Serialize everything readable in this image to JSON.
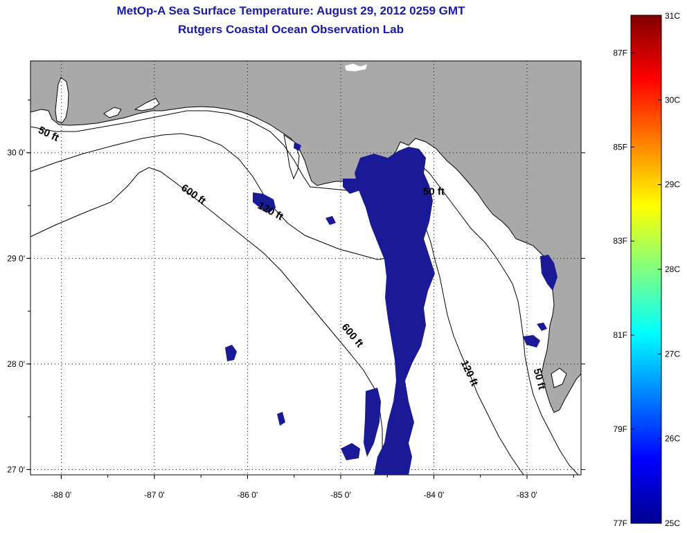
{
  "title": "MetOp-A Sea Surface Temperature:  August 29, 2012 0259 GMT",
  "subtitle": "Rutgers Coastal Ocean Observation Lab",
  "lon_ticks": [
    {
      "value": -88,
      "label": "-88 0'"
    },
    {
      "value": -87,
      "label": "-87 0'"
    },
    {
      "value": -86,
      "label": "-86 0'"
    },
    {
      "value": -85,
      "label": "-85 0'"
    },
    {
      "value": -84,
      "label": "-84 0'"
    },
    {
      "value": -83,
      "label": "-83 0'"
    }
  ],
  "lat_ticks": [
    {
      "value": 30,
      "label": "30 0'"
    },
    {
      "value": 29,
      "label": "29 0'"
    },
    {
      "value": 28,
      "label": "28 0'"
    },
    {
      "value": 27,
      "label": "27 0'"
    }
  ],
  "lon_range": [
    -88.33,
    -82.42
  ],
  "lat_range": [
    26.95,
    30.87
  ],
  "grid": true,
  "contour_labels": [
    {
      "text": "50 ft",
      "lon": -88.15,
      "lat": 30.15,
      "rotate": 25
    },
    {
      "text": "600 ft",
      "lon": -86.6,
      "lat": 29.58,
      "rotate": 35
    },
    {
      "text": "120 ft",
      "lon": -85.77,
      "lat": 29.42,
      "rotate": 28
    },
    {
      "text": "50 ft",
      "lon": -84.0,
      "lat": 29.6,
      "rotate": 0
    },
    {
      "text": "600 ft",
      "lon": -84.9,
      "lat": 28.25,
      "rotate": 50
    },
    {
      "text": "120 ft",
      "lon": -83.65,
      "lat": 27.9,
      "rotate": 65
    },
    {
      "text": "50 ft",
      "lon": -82.9,
      "lat": 27.85,
      "rotate": 75
    }
  ],
  "colorbar": {
    "min_c": 25,
    "max_c": 31,
    "celsius_labels": [
      "31C",
      "30C",
      "29C",
      "28C",
      "27C",
      "26C",
      "25C"
    ],
    "fahrenheit_labels": [
      {
        "value": 87,
        "label": "87F"
      },
      {
        "value": 85,
        "label": "85F"
      },
      {
        "value": 83,
        "label": "83F"
      },
      {
        "value": 81,
        "label": "81F"
      },
      {
        "value": 79,
        "label": "79F"
      },
      {
        "value": 77,
        "label": "77F"
      }
    ]
  },
  "colors": {
    "land": "#a9a9a9",
    "ocean": "#ffffff",
    "sst_patch": "#1a1a96",
    "title": "#1a1aa6"
  }
}
